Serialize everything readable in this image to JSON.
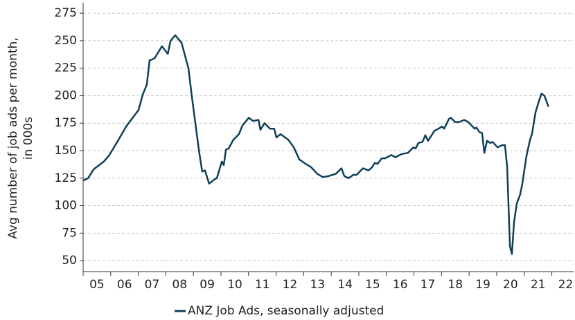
{
  "chart_data": {
    "type": "line",
    "y_label": [
      "Avg number of job ads per month,",
      "in 000s"
    ],
    "x": [
      2005.0,
      2005.18,
      2005.38,
      2005.75,
      2005.95,
      2006.31,
      2006.56,
      2006.83,
      2007.01,
      2007.16,
      2007.31,
      2007.41,
      2007.59,
      2007.86,
      2008.07,
      2008.17,
      2008.34,
      2008.57,
      2008.82,
      2008.94,
      2009.07,
      2009.2,
      2009.32,
      2009.42,
      2009.57,
      2009.77,
      2009.85,
      2010.03,
      2010.1,
      2010.18,
      2010.28,
      2010.45,
      2010.65,
      2010.78,
      2011.01,
      2011.16,
      2011.36,
      2011.43,
      2011.58,
      2011.78,
      2011.93,
      2012.01,
      2012.16,
      2012.44,
      2012.64,
      2012.84,
      2013.07,
      2013.27,
      2013.49,
      2013.69,
      2013.92,
      2014.17,
      2014.37,
      2014.47,
      2014.62,
      2014.8,
      2014.92,
      2015.15,
      2015.35,
      2015.48,
      2015.58,
      2015.68,
      2015.83,
      2015.95,
      2016.18,
      2016.33,
      2016.56,
      2016.78,
      2016.98,
      2017.06,
      2017.16,
      2017.31,
      2017.41,
      2017.51,
      2017.74,
      2017.89,
      2018.02,
      2018.09,
      2018.27,
      2018.34,
      2018.49,
      2018.64,
      2018.82,
      2018.97,
      2019.2,
      2019.27,
      2019.37,
      2019.47,
      2019.55,
      2019.65,
      2019.77,
      2019.85,
      2020.03,
      2020.2,
      2020.3,
      2020.38,
      2020.48,
      2020.55,
      2020.63,
      2020.73,
      2020.85,
      2020.93,
      2021.08,
      2021.21,
      2021.28,
      2021.41,
      2021.53,
      2021.63,
      2021.73,
      2021.88
    ],
    "series": [
      {
        "name": "ANZ Job Ads, seasonally adjusted",
        "color": "#0e3f57",
        "values": [
          123,
          125,
          133,
          140,
          146,
          161,
          172,
          181,
          187,
          201,
          210,
          232,
          234,
          245,
          238,
          250,
          255,
          248,
          225,
          200,
          175,
          150,
          131,
          132,
          120,
          124,
          125,
          140,
          137,
          151,
          152,
          160,
          165,
          173,
          180,
          177,
          178,
          169,
          175,
          170,
          170,
          162,
          165,
          160,
          153,
          142,
          138,
          135,
          129,
          126,
          127,
          129,
          134,
          127,
          125,
          128,
          128,
          134,
          132,
          135,
          139,
          138,
          143,
          143,
          146,
          144,
          147,
          148,
          153,
          152,
          157,
          158,
          164,
          159,
          168,
          170,
          172,
          170,
          179,
          180,
          176,
          176,
          178,
          176,
          170,
          171,
          167,
          166,
          148,
          159,
          157,
          158,
          153,
          155,
          155,
          135,
          63,
          56,
          85,
          102,
          110,
          120,
          145,
          160,
          165,
          185,
          195,
          202,
          200,
          190
        ]
      }
    ],
    "xlim": [
      2005,
      2022.79
    ],
    "xticks": [
      {
        "value": 2005.5,
        "label": "05"
      },
      {
        "value": 2006.5,
        "label": "06"
      },
      {
        "value": 2007.5,
        "label": "07"
      },
      {
        "value": 2008.5,
        "label": "08"
      },
      {
        "value": 2009.5,
        "label": "09"
      },
      {
        "value": 2010.5,
        "label": "10"
      },
      {
        "value": 2011.5,
        "label": "11"
      },
      {
        "value": 2012.5,
        "label": "12"
      },
      {
        "value": 2013.5,
        "label": "13"
      },
      {
        "value": 2014.5,
        "label": "14"
      },
      {
        "value": 2015.5,
        "label": "15"
      },
      {
        "value": 2016.5,
        "label": "16"
      },
      {
        "value": 2017.5,
        "label": "17"
      },
      {
        "value": 2018.5,
        "label": "18"
      },
      {
        "value": 2019.5,
        "label": "19"
      },
      {
        "value": 2020.5,
        "label": "20"
      },
      {
        "value": 2021.5,
        "label": "21"
      },
      {
        "value": 2022.5,
        "label": "22"
      }
    ],
    "xtick_marks": [
      2005,
      2006,
      2007,
      2008,
      2009,
      2010,
      2011,
      2012,
      2013,
      2014,
      2015,
      2016,
      2017,
      2018,
      2019,
      2020,
      2021,
      2022
    ],
    "ylim": [
      40,
      282
    ],
    "yticks": [
      50,
      75,
      100,
      125,
      150,
      175,
      200,
      225,
      250,
      275
    ],
    "grid": true,
    "legend": "bottom"
  }
}
